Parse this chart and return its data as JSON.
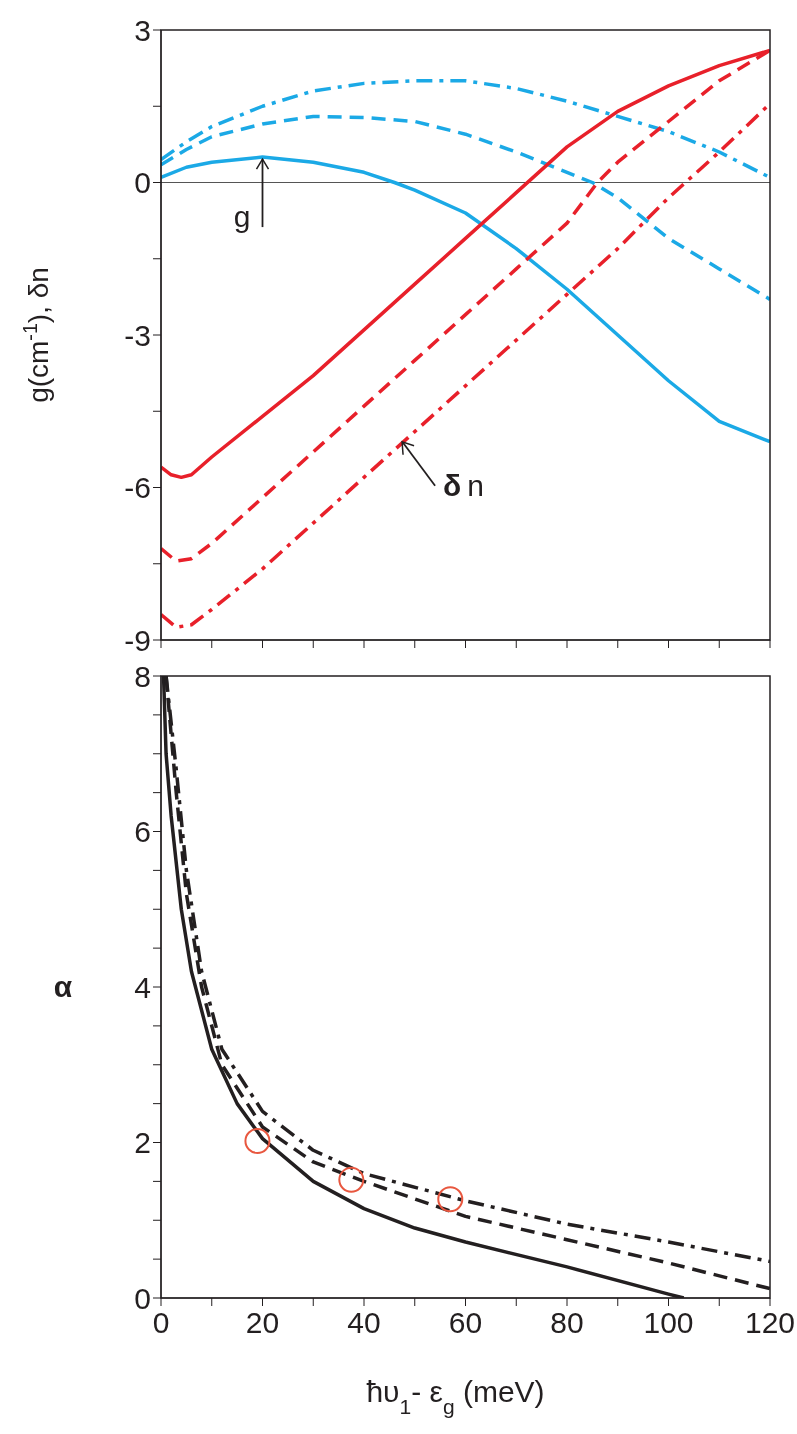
{
  "chart_data": [
    {
      "type": "line",
      "ylabel": "g(cm$^{-1}$), δn",
      "xlim": [
        0,
        120
      ],
      "xticks": [
        0,
        10,
        20,
        30,
        40,
        50,
        60,
        70,
        80,
        90,
        100,
        110,
        120
      ],
      "ylim": [
        -9,
        3
      ],
      "yticks": [
        -9,
        {
          "value": -7.5,
          "label": null
        },
        -6,
        {
          "value": -4.5,
          "label": null
        },
        -3,
        {
          "value": -1.5,
          "label": null
        },
        0,
        {
          "value": 1.5,
          "label": null
        },
        3
      ],
      "tick_labels": "y",
      "marker": "none",
      "ref_lines": [
        {
          "axis": "y",
          "value": 0,
          "color": "#555555"
        }
      ],
      "annotations": [
        {
          "text": "g",
          "x": 20,
          "y": 0.5
        },
        {
          "text": "δn",
          "x": 47.5,
          "y": -5.1
        }
      ],
      "series": [
        {
          "color": "#1ba9e6",
          "line_style": "solid",
          "x": [
            0,
            5,
            10,
            20,
            30,
            40,
            46,
            50,
            60,
            70,
            80,
            90,
            100,
            110,
            120
          ],
          "values": [
            0.1,
            0.3,
            0.4,
            0.5,
            0.4,
            0.2,
            0,
            -0.15,
            -0.6,
            -1.3,
            -2.1,
            -3.0,
            -3.9,
            -4.7,
            -5.1
          ]
        },
        {
          "color": "#1ba9e6",
          "line_style": "dashed",
          "x": [
            0,
            5,
            10,
            20,
            30,
            40,
            50,
            60,
            70,
            80,
            85,
            90,
            100,
            110,
            120
          ],
          "values": [
            0.35,
            0.65,
            0.9,
            1.15,
            1.3,
            1.28,
            1.2,
            0.95,
            0.6,
            0.2,
            0,
            -0.3,
            -1.1,
            -1.7,
            -2.3
          ]
        },
        {
          "color": "#1ba9e6",
          "line_style": "dashdot",
          "x": [
            0,
            5,
            10,
            20,
            30,
            40,
            50,
            60,
            70,
            80,
            90,
            100,
            110,
            120
          ],
          "values": [
            0.45,
            0.8,
            1.1,
            1.5,
            1.8,
            1.95,
            2.0,
            2.0,
            1.85,
            1.6,
            1.3,
            1.0,
            0.6,
            0.1
          ]
        },
        {
          "color": "#e8202a",
          "line_style": "solid",
          "x": [
            0,
            2,
            4,
            6,
            10,
            20,
            30,
            40,
            50,
            60,
            70,
            80,
            90,
            100,
            110,
            120
          ],
          "values": [
            -5.6,
            -5.75,
            -5.8,
            -5.75,
            -5.4,
            -4.6,
            -3.8,
            -2.9,
            -2.0,
            -1.1,
            -0.2,
            0.7,
            1.4,
            1.9,
            2.3,
            2.6
          ]
        },
        {
          "color": "#e8202a",
          "line_style": "dashed",
          "x": [
            0,
            3,
            6,
            10,
            20,
            30,
            40,
            50,
            60,
            70,
            80,
            86,
            90,
            100,
            110,
            120
          ],
          "values": [
            -7.2,
            -7.45,
            -7.4,
            -7.1,
            -6.2,
            -5.3,
            -4.4,
            -3.5,
            -2.6,
            -1.7,
            -0.8,
            0,
            0.4,
            1.2,
            2.0,
            2.6
          ]
        },
        {
          "color": "#e8202a",
          "line_style": "dashdot",
          "x": [
            0,
            3,
            6,
            10,
            20,
            30,
            40,
            50,
            60,
            70,
            80,
            90,
            100,
            110,
            120
          ],
          "values": [
            -8.5,
            -8.75,
            -8.7,
            -8.4,
            -7.6,
            -6.7,
            -5.8,
            -4.9,
            -4.0,
            -3.1,
            -2.2,
            -1.3,
            -0.3,
            0.6,
            1.55
          ]
        }
      ]
    },
    {
      "type": "line",
      "ylabel": "α",
      "xlabel": "ħυ$_{1}$- ε$_{g}$ (meV)",
      "xlim": [
        0,
        120
      ],
      "xticks": [
        0,
        {
          "value": 10,
          "label": null
        },
        20,
        {
          "value": 30,
          "label": null
        },
        40,
        {
          "value": 50,
          "label": null
        },
        60,
        {
          "value": 70,
          "label": null
        },
        80,
        {
          "value": 90,
          "label": null
        },
        100,
        {
          "value": 110,
          "label": null
        },
        120
      ],
      "ylim": [
        0,
        8
      ],
      "yticks": [
        0,
        {
          "value": 0.5,
          "label": null
        },
        {
          "value": 1,
          "label": null
        },
        {
          "value": 1.5,
          "label": null
        },
        2,
        {
          "value": 2.5,
          "label": null
        },
        {
          "value": 3,
          "label": null
        },
        {
          "value": 3.5,
          "label": null
        },
        4,
        {
          "value": 4.5,
          "label": null
        },
        {
          "value": 5,
          "label": null
        },
        {
          "value": 5.5,
          "label": null
        },
        6,
        {
          "value": 6.5,
          "label": null
        },
        {
          "value": 7,
          "label": null
        },
        {
          "value": 7.5,
          "label": null
        },
        8
      ],
      "series": [
        {
          "color": "#231f20",
          "line_style": "solid",
          "marker": "none",
          "x": [
            0.5,
            1,
            2,
            4,
            6,
            10,
            15,
            20,
            30,
            40,
            50,
            60,
            80,
            100,
            103
          ],
          "values": [
            8,
            7.0,
            6.2,
            5.0,
            4.2,
            3.2,
            2.5,
            2.05,
            1.5,
            1.15,
            0.9,
            0.72,
            0.4,
            0.05,
            0
          ]
        },
        {
          "color": "#231f20",
          "line_style": "dashed",
          "marker": "none",
          "x": [
            1,
            3,
            5,
            8,
            12,
            20,
            30,
            40,
            60,
            80,
            100,
            120
          ],
          "values": [
            8,
            6.5,
            5.2,
            4.0,
            3.0,
            2.2,
            1.75,
            1.5,
            1.05,
            0.75,
            0.45,
            0.12
          ]
        },
        {
          "color": "#231f20",
          "line_style": "dashdot",
          "marker": "none",
          "x": [
            1,
            3,
            5,
            8,
            12,
            20,
            30,
            40,
            60,
            80,
            100,
            120
          ],
          "values": [
            8,
            6.8,
            5.5,
            4.2,
            3.2,
            2.4,
            1.9,
            1.6,
            1.25,
            0.95,
            0.72,
            0.47
          ]
        },
        {
          "type": "scatter",
          "color": "#e8573f",
          "marker": "circle",
          "x": [
            19,
            37.5,
            57
          ],
          "values": [
            2.02,
            1.52,
            1.27
          ]
        }
      ]
    }
  ]
}
